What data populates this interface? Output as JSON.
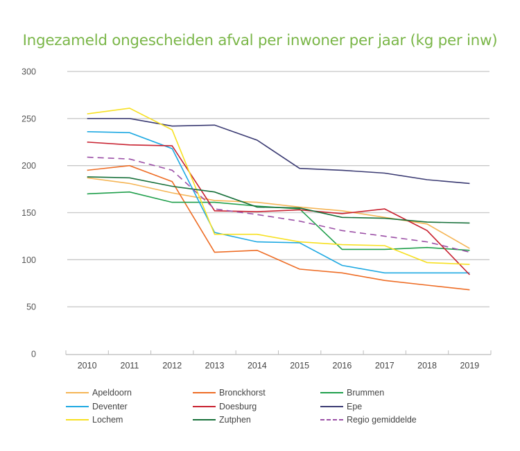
{
  "chart_data": {
    "type": "line",
    "title": "Ingezameld ongescheiden afval per inwoner per jaar (kg per inw)",
    "xlabel": "",
    "ylabel": "",
    "ylim": [
      0,
      300
    ],
    "yticks": [
      0,
      50,
      100,
      150,
      200,
      250,
      300
    ],
    "ytick_labels": [
      "0",
      "50",
      "100",
      "150",
      "200",
      "250",
      "300"
    ],
    "grid": "horizontal",
    "legend_position": "bottom",
    "categories": [
      "2010",
      "2011",
      "2012",
      "2013",
      "2014",
      "2015",
      "2016",
      "2017",
      "2018",
      "2019"
    ],
    "series": [
      {
        "name": "Apeldoorn",
        "color": "#f5b555",
        "dashed": false,
        "values": [
          187,
          181,
          171,
          163,
          161,
          156,
          152,
          145,
          138,
          112
        ]
      },
      {
        "name": "Bronckhorst",
        "color": "#ee6c24",
        "dashed": false,
        "values": [
          195,
          200,
          183,
          108,
          110,
          90,
          86,
          78,
          73,
          68
        ]
      },
      {
        "name": "Brummen",
        "color": "#1e9e4a",
        "dashed": false,
        "values": [
          170,
          172,
          161,
          161,
          157,
          154,
          111,
          111,
          113,
          110
        ]
      },
      {
        "name": "Deventer",
        "color": "#1ea9e2",
        "dashed": false,
        "values": [
          236,
          235,
          218,
          129,
          119,
          118,
          94,
          86,
          86,
          86
        ]
      },
      {
        "name": "Doesburg",
        "color": "#c8202f",
        "dashed": false,
        "values": [
          225,
          222,
          221,
          152,
          151,
          153,
          149,
          154,
          131,
          84
        ]
      },
      {
        "name": "Epe",
        "color": "#3a3a72",
        "dashed": false,
        "values": [
          250,
          250,
          242,
          243,
          227,
          197,
          195,
          192,
          185,
          181
        ]
      },
      {
        "name": "Lochem",
        "color": "#f7e020",
        "dashed": false,
        "values": [
          255,
          261,
          238,
          127,
          127,
          119,
          116,
          115,
          97,
          95
        ]
      },
      {
        "name": "Zutphen",
        "color": "#17703a",
        "dashed": false,
        "values": [
          188,
          187,
          178,
          172,
          156,
          155,
          145,
          144,
          140,
          139
        ]
      },
      {
        "name": "Regio gemiddelde",
        "color": "#9b4fa6",
        "dashed": true,
        "values": [
          209,
          207,
          195,
          154,
          148,
          141,
          131,
          125,
          119,
          108
        ]
      }
    ],
    "legend": [
      [
        "Apeldoorn",
        "Bronckhorst",
        "Brummen"
      ],
      [
        "Deventer",
        "Doesburg",
        "Epe"
      ],
      [
        "Lochem",
        "Zutphen",
        "Regio gemiddelde"
      ]
    ]
  },
  "colors": {
    "title": "#7ab648",
    "gridline": "#c8c8c8",
    "axis": "#bbbbbb",
    "tick_text": "#555555"
  }
}
